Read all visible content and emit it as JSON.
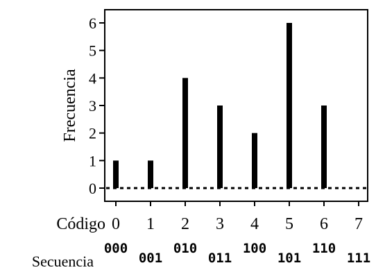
{
  "chart_data": {
    "type": "bar",
    "ylabel": "Frecuencia",
    "categories": [
      "0",
      "1",
      "2",
      "3",
      "4",
      "5",
      "6",
      "7"
    ],
    "values": [
      1,
      1,
      4,
      3,
      2,
      6,
      3,
      0
    ],
    "ylim": [
      0,
      6
    ],
    "yticks": [
      0,
      1,
      2,
      3,
      4,
      5,
      6
    ],
    "x_row_label": "Código",
    "sequence_row_label": "Secuencia",
    "sequences": [
      "000",
      "001",
      "010",
      "011",
      "100",
      "101",
      "110",
      "111"
    ],
    "baseline_style": "dotted",
    "grid": false,
    "bar_color": "#000000"
  }
}
